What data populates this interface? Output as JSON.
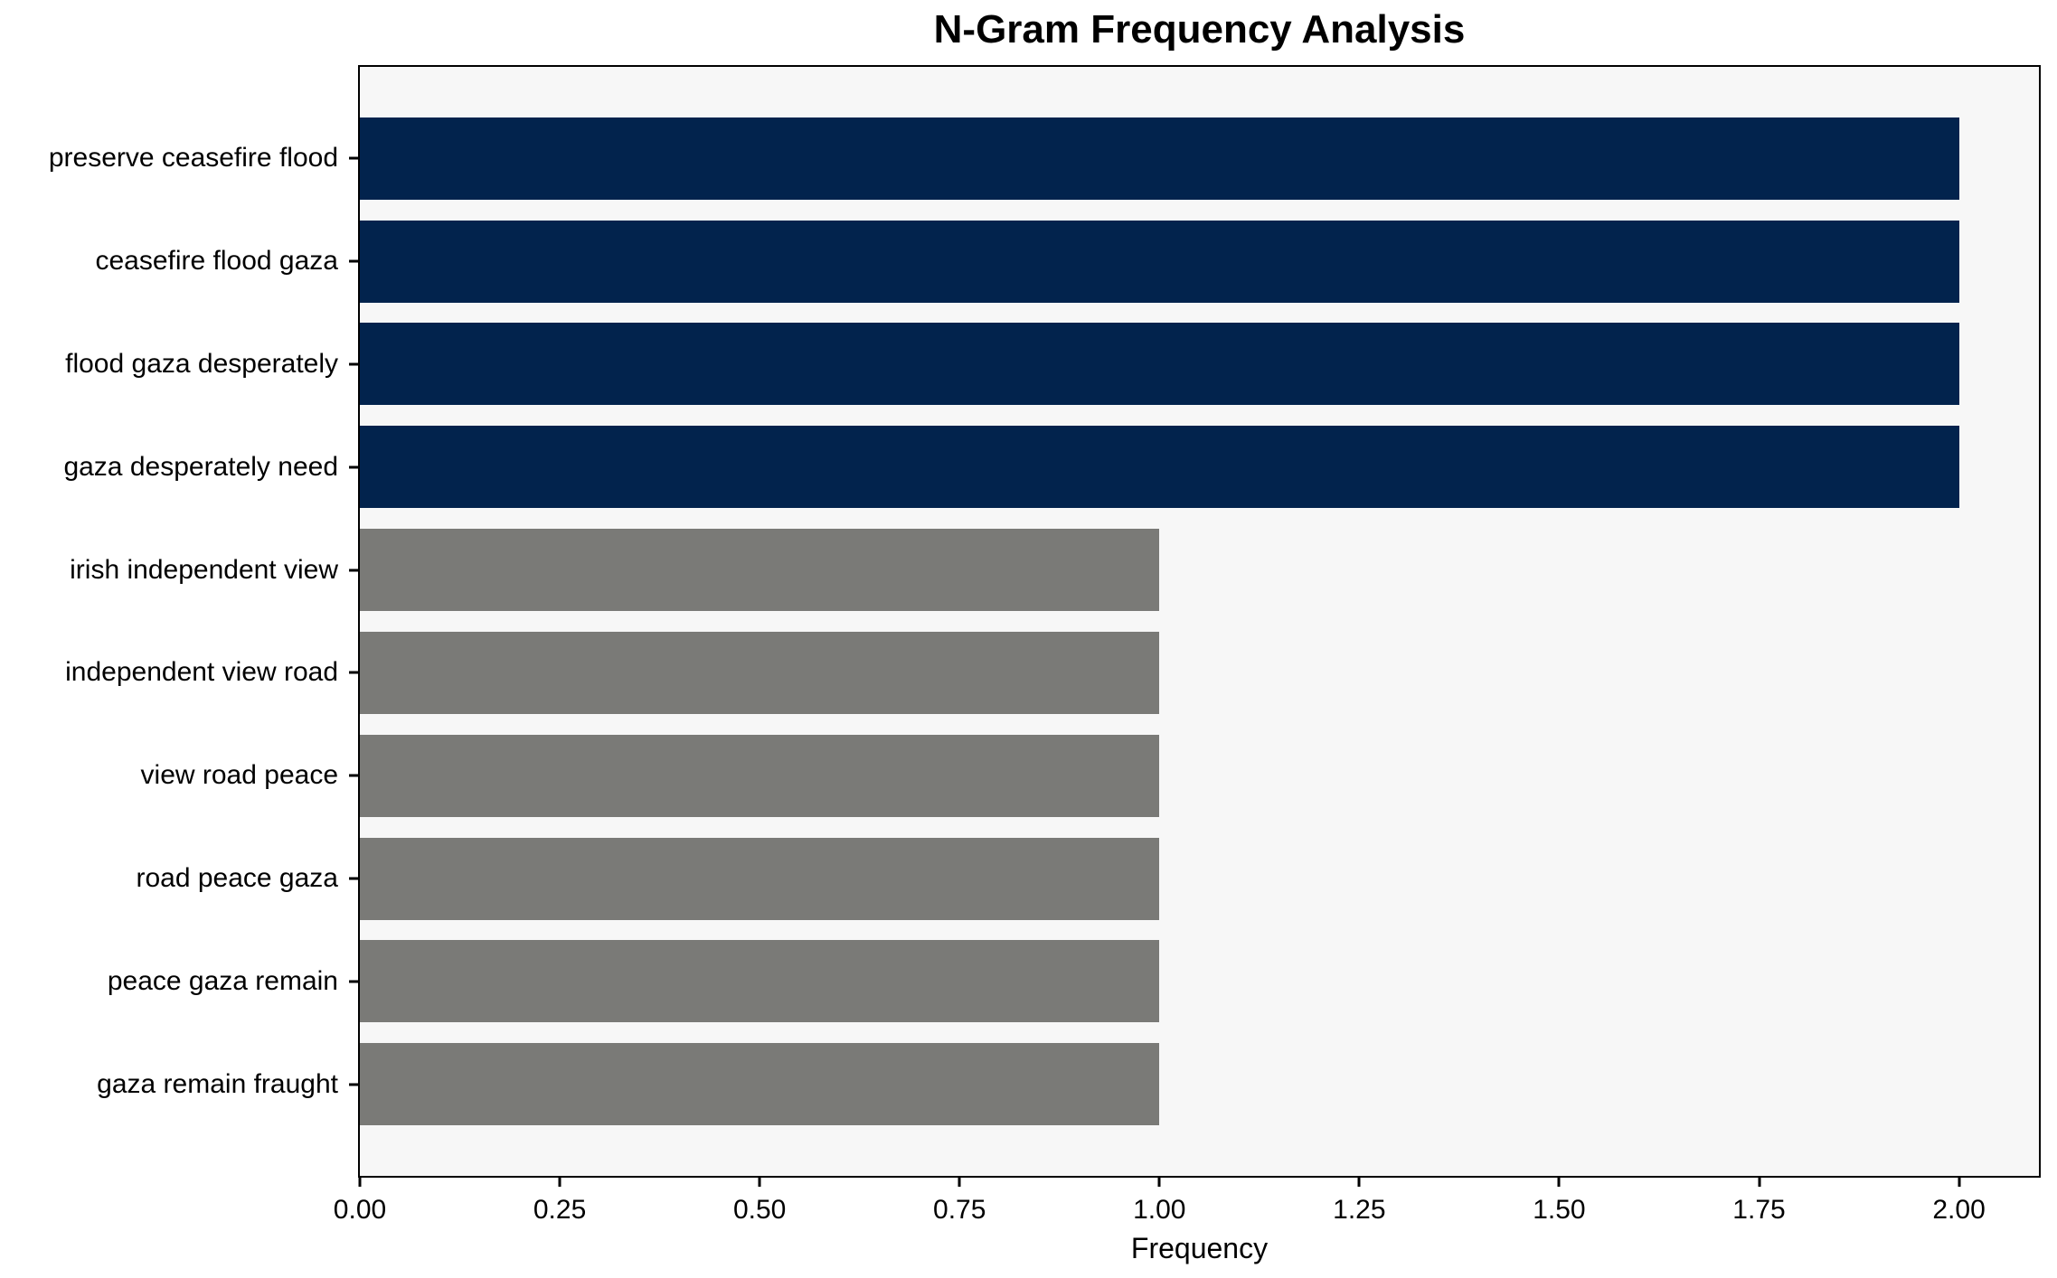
{
  "chart_data": {
    "type": "bar",
    "orientation": "horizontal",
    "title": "N-Gram Frequency Analysis",
    "xlabel": "Frequency",
    "ylabel": "",
    "categories": [
      "preserve ceasefire flood",
      "ceasefire flood gaza",
      "flood gaza desperately",
      "gaza desperately need",
      "irish independent view",
      "independent view road",
      "view road peace",
      "road peace gaza",
      "peace gaza remain",
      "gaza remain fraught"
    ],
    "values": [
      2,
      2,
      2,
      2,
      1,
      1,
      1,
      1,
      1,
      1
    ],
    "bar_colors": [
      "#02234d",
      "#02234d",
      "#02234d",
      "#02234d",
      "#7a7a77",
      "#7a7a77",
      "#7a7a77",
      "#7a7a77",
      "#7a7a77",
      "#7a7a77"
    ],
    "xtick_values": [
      0,
      0.25,
      0.5,
      0.75,
      1.0,
      1.25,
      1.5,
      1.75,
      2.0
    ],
    "xtick_labels": [
      "0.00",
      "0.25",
      "0.50",
      "0.75",
      "1.00",
      "1.25",
      "1.50",
      "1.75",
      "2.00"
    ],
    "xlim": [
      0,
      2.1
    ],
    "grid": false,
    "legend": null,
    "plot_bg": "#f7f7f7",
    "spine_color": "#000000",
    "text_color": "#000000"
  }
}
